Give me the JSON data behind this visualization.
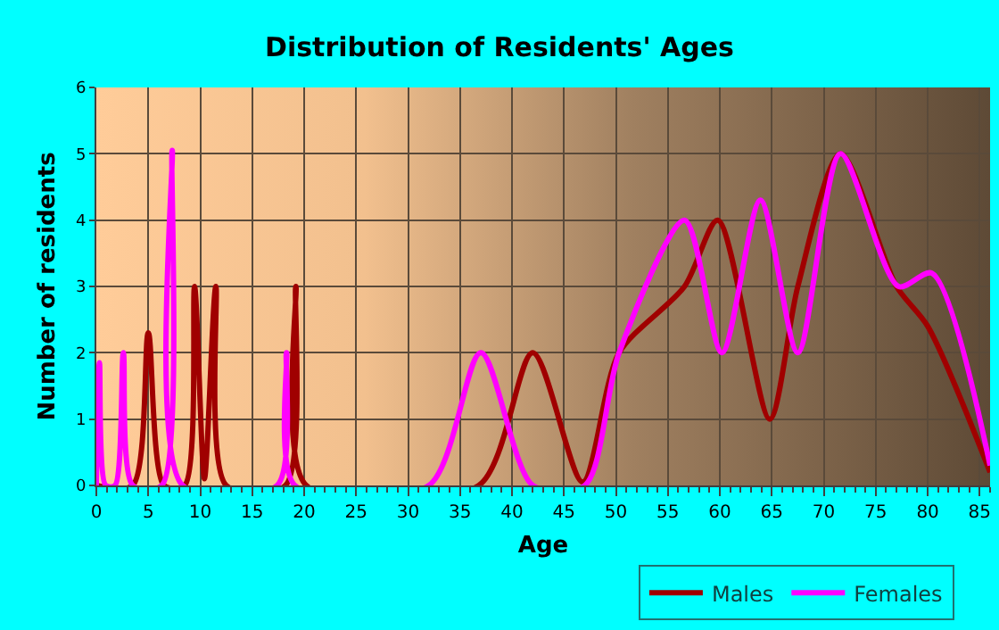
{
  "chart_data": {
    "type": "line",
    "title": "Distribution of Residents' Ages",
    "xlabel": "Age",
    "ylabel": "Number of residents",
    "xlim": [
      0,
      86
    ],
    "xticks": [
      0,
      5,
      10,
      15,
      20,
      25,
      30,
      35,
      40,
      45,
      50,
      55,
      60,
      65,
      70,
      75,
      80,
      85
    ],
    "ylim": [
      0,
      6
    ],
    "yticks": [
      0,
      1,
      2,
      3,
      4,
      5,
      6
    ],
    "grid": true,
    "legend": "bottom right",
    "marker": "none",
    "line_style": "solid",
    "series": [
      {
        "name": "Males",
        "color": "#a00000",
        "x": [
          0,
          3.5,
          5,
          6.5,
          8.5,
          9.45,
          10.4,
          11.5,
          12.5,
          18.2,
          19.2,
          20.2,
          36.8,
          42,
          46.8,
          50.3,
          56.6,
          59.8,
          64.8,
          67.5,
          71.6,
          77,
          80,
          86
        ],
        "values": [
          0,
          0,
          2.3,
          0,
          0,
          3,
          0.1,
          3,
          0,
          0,
          3,
          0,
          0,
          2,
          0.05,
          2,
          3,
          4,
          1,
          3,
          5,
          3,
          2.4,
          0.2
        ]
      },
      {
        "name": "Females",
        "color": "#ff00ff",
        "x": [
          0,
          0.3,
          0.9,
          1.8,
          2.6,
          3.5,
          6.3,
          7.3,
          8.3,
          17.4,
          18.3,
          19.1,
          32,
          37,
          42,
          47,
          50.3,
          56.6,
          60.2,
          63.9,
          67.5,
          71.6,
          77.2,
          80.4,
          86
        ],
        "values": [
          0,
          1.85,
          0,
          0,
          2,
          0,
          0,
          5.05,
          0,
          0,
          2,
          0,
          0,
          2,
          0,
          0,
          2,
          4,
          2,
          4.3,
          2,
          5,
          3,
          3.2,
          0.3
        ]
      }
    ]
  }
}
